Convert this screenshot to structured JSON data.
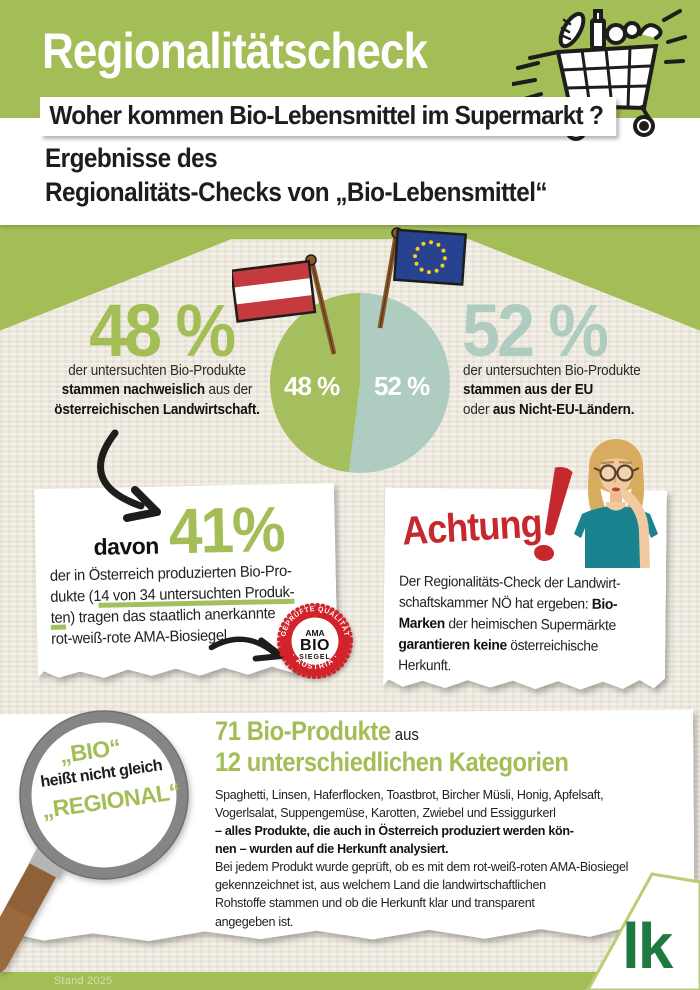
{
  "colors": {
    "green": "#a3bd57",
    "pie_green": "#a6bf5e",
    "pie_teal": "#afccc0",
    "red": "#c5282d",
    "badge_red": "#d2232a",
    "lk_green": "#1e7a40",
    "beige": "#ede8dd",
    "ink": "#1d1d1b"
  },
  "header": {
    "title": "Regionalitätscheck",
    "question": "Woher kommen Bio-Lebensmittel im Supermarkt ?",
    "heading_line1": "Ergebnisse des",
    "heading_line2": "Regionalitäts-Checks von „Bio-Lebensmittel“"
  },
  "chart_data": {
    "type": "pie",
    "slices": [
      {
        "label": "48 %",
        "value": 48,
        "color": "#a6bf5e",
        "flag": "austria-flag",
        "description": "der untersuchten Bio-Produkte stammen nachweislich aus der österreichischen Landwirtschaft."
      },
      {
        "label": "52 %",
        "value": 52,
        "color": "#afccc0",
        "flag": "eu-flag",
        "description": "der untersuchten Bio-Produkte stammen aus der EU oder aus Nicht-EU-Ländern."
      }
    ],
    "legend_position": "none"
  },
  "stat48": {
    "value": "48 %",
    "segments": [
      {
        "t": "der untersuchten Bio-Produkte"
      },
      {
        "br": true
      },
      {
        "t": "stammen nachweislich",
        "b": true
      },
      {
        "t": " aus der"
      },
      {
        "br": true
      },
      {
        "t": "österreichischen Landwirtschaft.",
        "b": true
      }
    ]
  },
  "stat52": {
    "value": "52 %",
    "segments": [
      {
        "t": "der untersuchten Bio-Produkte"
      },
      {
        "br": true
      },
      {
        "t": "stammen aus der EU",
        "b": true
      },
      {
        "br": true
      },
      {
        "t": "oder "
      },
      {
        "t": "aus Nicht-EU-Ländern.",
        "b": true
      }
    ]
  },
  "card41": {
    "davon": "davon",
    "value": "41%",
    "segments": [
      {
        "t": "der in Österreich produzierten Bio-Pro-"
      },
      {
        "br": true
      },
      {
        "t": "dukte "
      },
      {
        "t": "(14 von 34 untersuchten Produk-",
        "hl": true
      },
      {
        "br": true
      },
      {
        "t": "ten)",
        "hl": true
      },
      {
        "t": " tragen das staatlich anerkannte"
      },
      {
        "br": true
      },
      {
        "t": "rot-weiß-rote AMA-Biosiegel."
      }
    ]
  },
  "ama_badge": {
    "arc_top": "GEPRÜFTE QUALITÄT",
    "arc_bottom": "· AUSTRIA ·",
    "line1": "AMA",
    "line2": "BIO",
    "line3": "SIEGEL"
  },
  "achtung": {
    "title": "Achtung",
    "exclamation": "!",
    "segments": [
      {
        "t": "Der Regionalitäts-Check der Landwirt-"
      },
      {
        "br": true
      },
      {
        "t": "schaftskammer NÖ hat ergeben: "
      },
      {
        "t": "Bio-",
        "b": true
      },
      {
        "br": true
      },
      {
        "t": "Marken",
        "b": true
      },
      {
        "t": " der heimischen Supermärkte"
      },
      {
        "br": true
      },
      {
        "t": "garantieren keine",
        "b": true
      },
      {
        "t": " österreichische"
      },
      {
        "br": true
      },
      {
        "t": "Herkunft."
      }
    ]
  },
  "magnifier": {
    "line1": "„BIO“",
    "line2": "heißt nicht gleich",
    "line3": "„REGIONAL“"
  },
  "bottom": {
    "headline_green": "71 Bio-Produkte",
    "headline_suffix": " aus",
    "headline2": "12 unterschiedlichen Kategorien",
    "segments": [
      {
        "t": "Spaghetti, Linsen, Haferflocken, Toastbrot, Bircher Müsli, Honig, Apfelsaft,"
      },
      {
        "br": true
      },
      {
        "t": "Vogerlsalat, Suppengemüse, Karotten, Zwiebel und Essiggurkerl"
      },
      {
        "br": true
      },
      {
        "t": "– alles Produkte, die auch in Österreich produziert werden kön-",
        "b": true
      },
      {
        "br": true
      },
      {
        "t": "nen – wurden auf die Herkunft analysiert.",
        "b": true
      },
      {
        "br": true
      },
      {
        "t": "Bei jedem Produkt wurde geprüft, ob es mit dem rot-weiß-roten AMA-Biosiegel"
      },
      {
        "br": true
      },
      {
        "t": "gekennzeichnet ist, aus welchem Land die landwirtschaftlichen"
      },
      {
        "br": true
      },
      {
        "t": "Rohstoffe stammen und ob die Herkunft klar und transparent"
      },
      {
        "br": true
      },
      {
        "t": "angegeben ist."
      }
    ]
  },
  "footer": {
    "stand": "Stand 2025",
    "logo_text": "lk"
  }
}
